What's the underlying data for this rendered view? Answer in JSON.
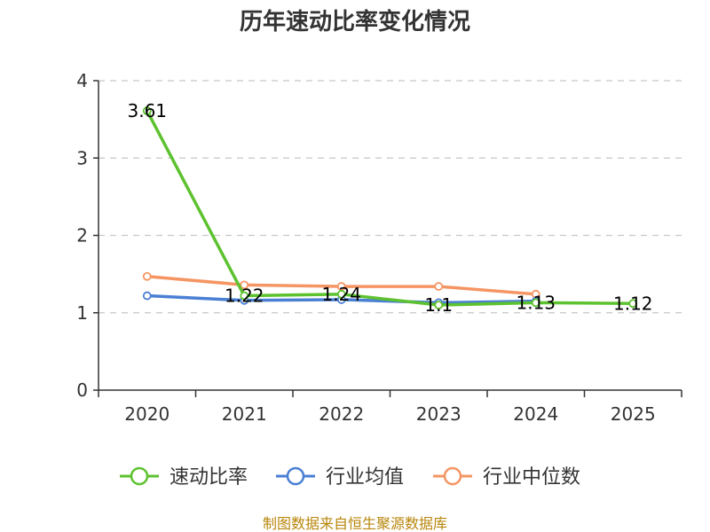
{
  "chart_data": {
    "type": "line",
    "title": "历年速动比率变化情况",
    "categories": [
      "2020",
      "2021",
      "2022",
      "2023",
      "2024",
      "2025"
    ],
    "ylim": [
      0,
      4
    ],
    "yticks": [
      0,
      1,
      2,
      3,
      4
    ],
    "grid": true,
    "legend_position": "bottom",
    "series": [
      {
        "name": "速动比率",
        "color": "#5dc22f",
        "values": [
          3.61,
          1.22,
          1.24,
          1.1,
          1.13,
          1.12
        ],
        "labels": [
          "3.61",
          "1.22",
          "1.24",
          "1.1",
          "1.13",
          "1.12"
        ]
      },
      {
        "name": "行业均值",
        "color": "#4a7fd4",
        "values": [
          1.22,
          1.16,
          1.17,
          1.13,
          1.15,
          null
        ]
      },
      {
        "name": "行业中位数",
        "color": "#f59563",
        "values": [
          1.47,
          1.36,
          1.34,
          1.34,
          1.24,
          null
        ]
      }
    ],
    "source": "制图数据来自恒生聚源数据库"
  }
}
